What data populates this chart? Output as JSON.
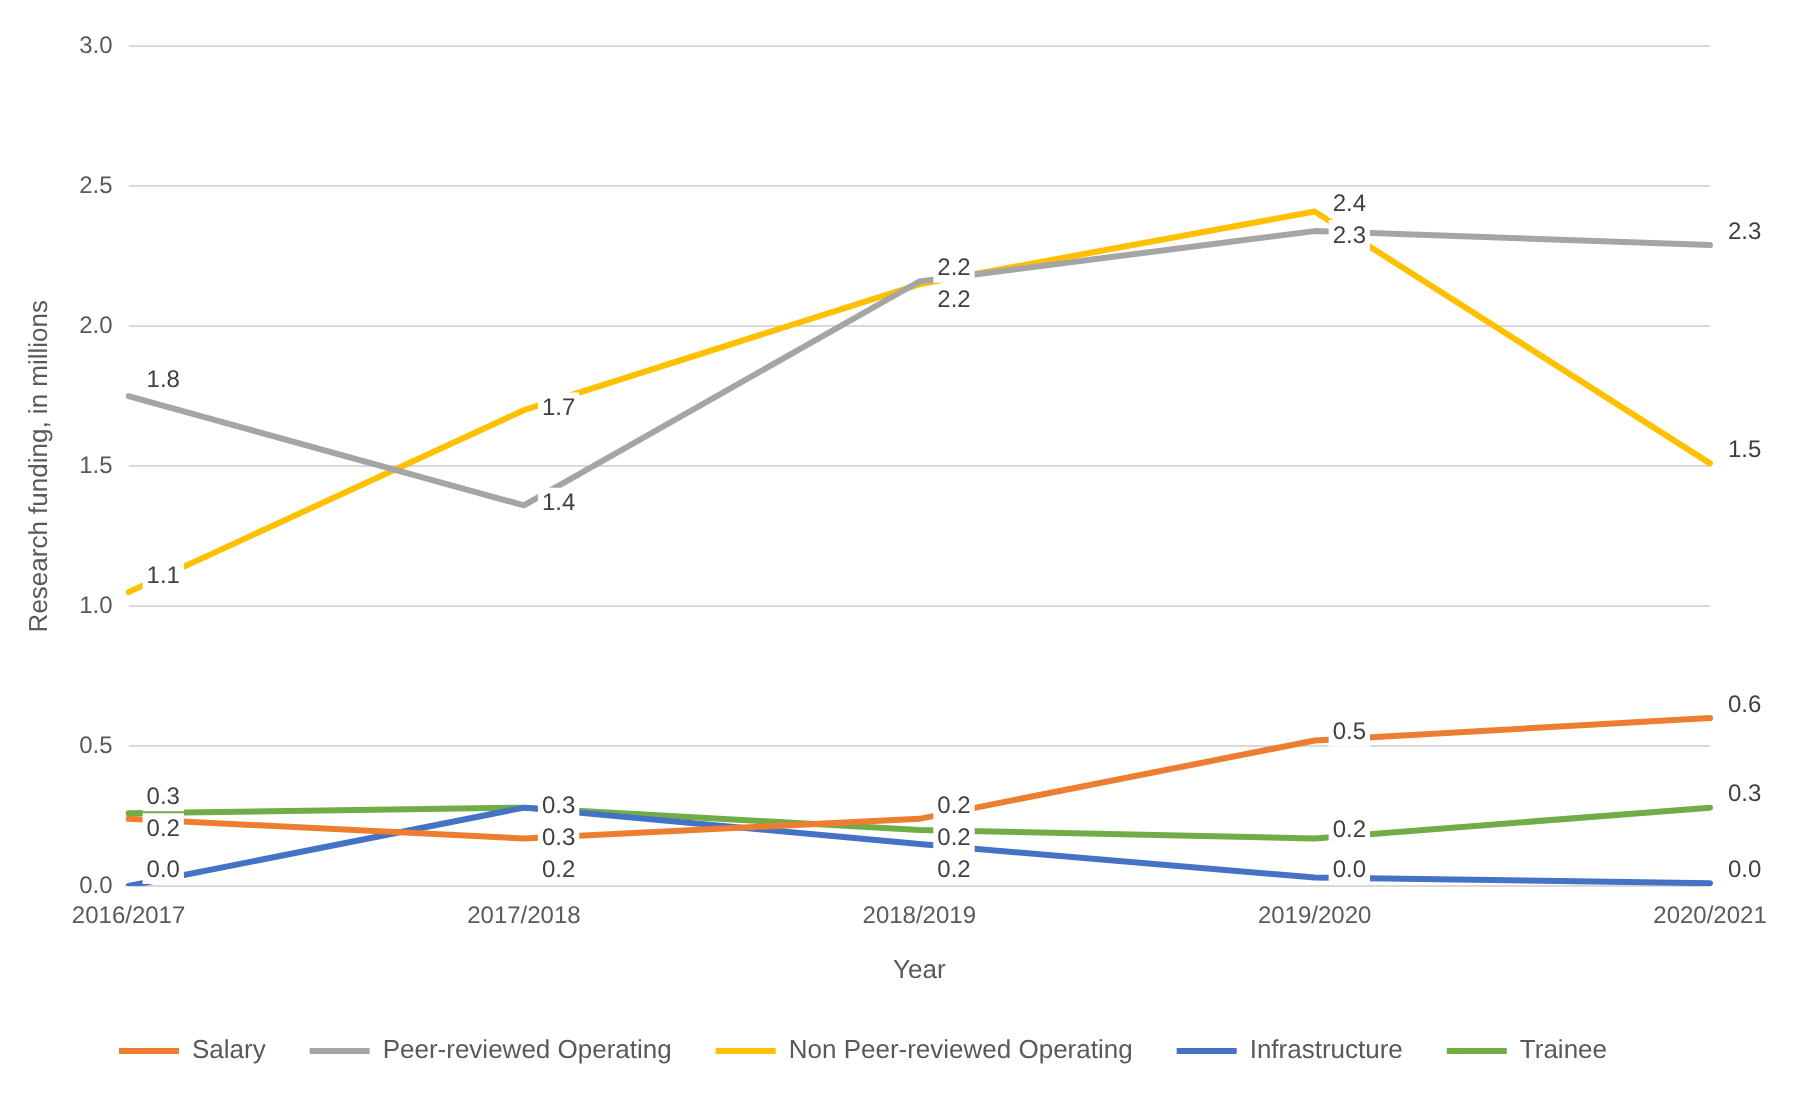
{
  "chart_data": {
    "type": "line",
    "xlabel": "Year",
    "ylabel": "Research funding, in millions",
    "categories": [
      "2016/2017",
      "2017/2018",
      "2018/2019",
      "2019/2020",
      "2020/2021"
    ],
    "series": [
      {
        "name": "Salary",
        "color": "#ed7d31",
        "values": [
          0.24,
          0.17,
          0.24,
          0.52,
          0.6
        ],
        "value_labels": [
          "0.2",
          "0.2",
          "0.2",
          "0.5",
          "0.6"
        ]
      },
      {
        "name": "Peer-reviewed Operating",
        "color": "#a5a5a5",
        "values": [
          1.75,
          1.36,
          2.16,
          2.34,
          2.29
        ],
        "value_labels": [
          "1.8",
          "1.4",
          "2.2",
          "2.3",
          "2.3"
        ]
      },
      {
        "name": "Non Peer-reviewed Operating",
        "color": "#ffc000",
        "values": [
          1.05,
          1.7,
          2.15,
          2.41,
          1.51
        ],
        "value_labels": [
          "1.1",
          "1.7",
          "2.2",
          "2.4",
          "1.5"
        ]
      },
      {
        "name": "Infrastructure",
        "color": "#4472c4",
        "values": [
          0.0,
          0.28,
          0.15,
          0.03,
          0.01
        ],
        "value_labels": [
          "0.0",
          "0.3",
          "0.2",
          "0.0",
          "0.0"
        ]
      },
      {
        "name": "Trainee",
        "color": "#70ad47",
        "values": [
          0.26,
          0.28,
          0.2,
          0.17,
          0.28
        ],
        "value_labels": [
          "0.3",
          "0.3",
          "0.2",
          "0.2",
          "0.3"
        ]
      }
    ],
    "ylim": [
      0,
      3
    ],
    "yticks": [
      {
        "value": 0,
        "label": "0.0"
      },
      0.5,
      {
        "value": 1,
        "label": "1.0"
      },
      1.5,
      {
        "value": 2,
        "label": "2.0"
      },
      2.5,
      {
        "value": 3,
        "label": "3.0"
      }
    ],
    "grid": "y",
    "legend": "bottom",
    "marker": "none",
    "line_style": "solid"
  }
}
